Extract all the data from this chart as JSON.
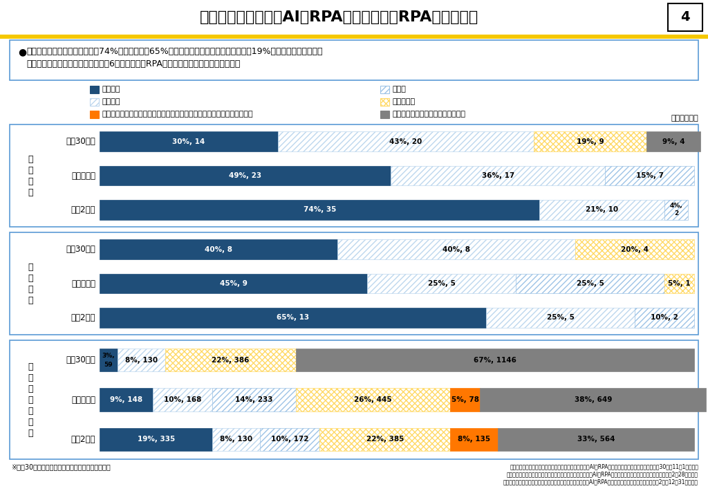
{
  "title": "地方自治体におけるAI・RPAの導入状況（RPA導入状況）",
  "page_number": "4",
  "bullet_text_line1": "導入済み団体数は、都道府県が74%、指定都市が65%まで増加した。その他の市区町村は19%にとどまっているが、",
  "bullet_text_line2": "導入予定、導入検討中を含めると約6割の自治体がRPAの導入に向けて取り組んでいる。",
  "legend_items": [
    {
      "label": "導入済み",
      "color": "#1F4E79",
      "hatch": null,
      "col": 0
    },
    {
      "label": "実証中",
      "color": "#9DC3E6",
      "hatch": "////",
      "col": 1
    },
    {
      "label": "導入予定",
      "color": "#BDD7EE",
      "hatch": "////",
      "col": 0
    },
    {
      "label": "導入検討中",
      "color": "#FFD966",
      "hatch": "xxxx",
      "col": 1
    },
    {
      "label": "導入の検討を行った、または実証実験を実施したが導入には至らなかった",
      "color": "#FF7700",
      "hatch": null,
      "col": 0
    },
    {
      "label": "導入予定もなく、検討もしていない",
      "color": "#808080",
      "hatch": null,
      "col": 1
    }
  ],
  "groups": [
    {
      "label": "都\n道\n府\n県",
      "rows": [
        {
          "year": "平成30年度",
          "bars": [
            {
              "pct": 30,
              "val": 14,
              "color": "#1F4E79",
              "hatch": null
            },
            {
              "pct": 43,
              "val": 20,
              "color": "#BDD7EE",
              "hatch": "////"
            },
            {
              "pct": 19,
              "val": 9,
              "color": "#FFD966",
              "hatch": "xxxx"
            },
            {
              "pct": 9,
              "val": 4,
              "color": "#808080",
              "hatch": null
            }
          ]
        },
        {
          "year": "令和元年度",
          "bars": [
            {
              "pct": 49,
              "val": 23,
              "color": "#1F4E79",
              "hatch": null
            },
            {
              "pct": 36,
              "val": 17,
              "color": "#BDD7EE",
              "hatch": "////"
            },
            {
              "pct": 15,
              "val": 7,
              "color": "#9DC3E6",
              "hatch": "////"
            }
          ]
        },
        {
          "year": "令和2年度",
          "bars": [
            {
              "pct": 74,
              "val": 35,
              "color": "#1F4E79",
              "hatch": null
            },
            {
              "pct": 21,
              "val": 10,
              "color": "#BDD7EE",
              "hatch": "////"
            },
            {
              "pct": 4,
              "val": 2,
              "color": "#9DC3E6",
              "hatch": "////"
            }
          ]
        }
      ]
    },
    {
      "label": "指\n定\n都\n市",
      "rows": [
        {
          "year": "平成30年度",
          "bars": [
            {
              "pct": 40,
              "val": 8,
              "color": "#1F4E79",
              "hatch": null
            },
            {
              "pct": 40,
              "val": 8,
              "color": "#BDD7EE",
              "hatch": "////"
            },
            {
              "pct": 20,
              "val": 4,
              "color": "#FFD966",
              "hatch": "xxxx"
            }
          ]
        },
        {
          "year": "令和元年度",
          "bars": [
            {
              "pct": 45,
              "val": 9,
              "color": "#1F4E79",
              "hatch": null
            },
            {
              "pct": 25,
              "val": 5,
              "color": "#BDD7EE",
              "hatch": "////"
            },
            {
              "pct": 25,
              "val": 5,
              "color": "#9DC3E6",
              "hatch": "////"
            },
            {
              "pct": 5,
              "val": 1,
              "color": "#FFD966",
              "hatch": "xxxx"
            }
          ]
        },
        {
          "year": "令和2年度",
          "bars": [
            {
              "pct": 65,
              "val": 13,
              "color": "#1F4E79",
              "hatch": null
            },
            {
              "pct": 25,
              "val": 5,
              "color": "#BDD7EE",
              "hatch": "////"
            },
            {
              "pct": 10,
              "val": 2,
              "color": "#9DC3E6",
              "hatch": "////"
            }
          ]
        }
      ]
    },
    {
      "label": "そ\nの\n他\n市\n区\n町\n村",
      "rows": [
        {
          "year": "平成30年度",
          "bars": [
            {
              "pct": 3,
              "val": 59,
              "color": "#1F4E79",
              "hatch": null
            },
            {
              "pct": 8,
              "val": 130,
              "color": "#BDD7EE",
              "hatch": "////"
            },
            {
              "pct": 22,
              "val": 386,
              "color": "#FFD966",
              "hatch": "xxxx"
            },
            {
              "pct": 67,
              "val": 1146,
              "color": "#808080",
              "hatch": null
            }
          ]
        },
        {
          "year": "令和元年度",
          "bars": [
            {
              "pct": 9,
              "val": 148,
              "color": "#1F4E79",
              "hatch": null
            },
            {
              "pct": 10,
              "val": 168,
              "color": "#BDD7EE",
              "hatch": "////"
            },
            {
              "pct": 14,
              "val": 233,
              "color": "#9DC3E6",
              "hatch": "////"
            },
            {
              "pct": 26,
              "val": 445,
              "color": "#FFD966",
              "hatch": "xxxx"
            },
            {
              "pct": 5,
              "val": 78,
              "color": "#FF7700",
              "hatch": null
            },
            {
              "pct": 38,
              "val": 649,
              "color": "#808080",
              "hatch": null
            }
          ]
        },
        {
          "year": "令和2年度",
          "bars": [
            {
              "pct": 19,
              "val": 335,
              "color": "#1F4E79",
              "hatch": null
            },
            {
              "pct": 8,
              "val": 130,
              "color": "#BDD7EE",
              "hatch": "////"
            },
            {
              "pct": 10,
              "val": 172,
              "color": "#9DC3E6",
              "hatch": "////"
            },
            {
              "pct": 22,
              "val": 385,
              "color": "#FFD966",
              "hatch": "xxxx"
            },
            {
              "pct": 8,
              "val": 135,
              "color": "#FF7700",
              "hatch": null
            },
            {
              "pct": 33,
              "val": 564,
              "color": "#808080",
              "hatch": null
            }
          ]
        }
      ]
    }
  ],
  "footnote_left": "※平成30年度の「導入済み」には「実証中」を含む",
  "footnote_right1": "総務省自治行政局行政経営支援室「地方自治体におけるAI・RPAの実証実験・導入状況調査」（平成30年度11月1日現在）",
  "footnote_right2": "総務省行政通信行政局地域通信振興課「地方自治体におけるAI・RPAの実証実験・導入状況調査」（令和元年度2月28日現在）",
  "footnote_right3": "総務省行政通信行政局地域通信振興課「地方自治体におけるAI・RPAの実証実験・導入状況調査」（令和2年度12月31日現在）"
}
